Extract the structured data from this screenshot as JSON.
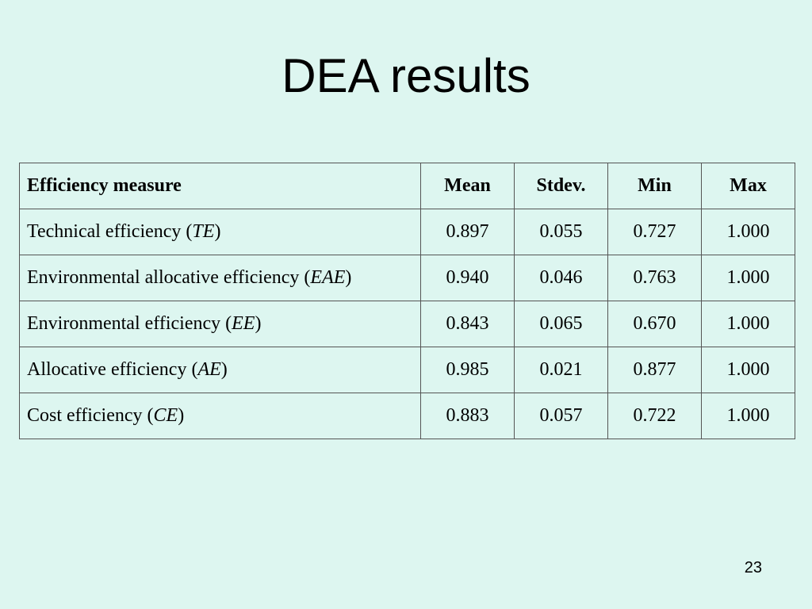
{
  "slide": {
    "title": "DEA results",
    "page_number": "23"
  },
  "table": {
    "headers": [
      "Efficiency measure",
      "Mean",
      "Stdev.",
      "Min",
      "Max"
    ],
    "rows": [
      {
        "label": "Technical efficiency (",
        "abbr": "TE",
        "close": ")",
        "mean": "0.897",
        "stdev": "0.055",
        "min": "0.727",
        "max": "1.000"
      },
      {
        "label": "Environmental allocative efficiency (",
        "abbr": "EAE",
        "close": ")",
        "mean": "0.940",
        "stdev": "0.046",
        "min": "0.763",
        "max": "1.000"
      },
      {
        "label": "Environmental efficiency (",
        "abbr": "EE",
        "close": ")",
        "mean": "0.843",
        "stdev": "0.065",
        "min": "0.670",
        "max": "1.000"
      },
      {
        "label": "Allocative efficiency (",
        "abbr": "AE",
        "close": ")",
        "mean": "0.985",
        "stdev": "0.021",
        "min": "0.877",
        "max": "1.000"
      },
      {
        "label": "Cost efficiency (",
        "abbr": "CE",
        "close": ")",
        "mean": "0.883",
        "stdev": "0.057",
        "min": "0.722",
        "max": "1.000"
      }
    ]
  }
}
